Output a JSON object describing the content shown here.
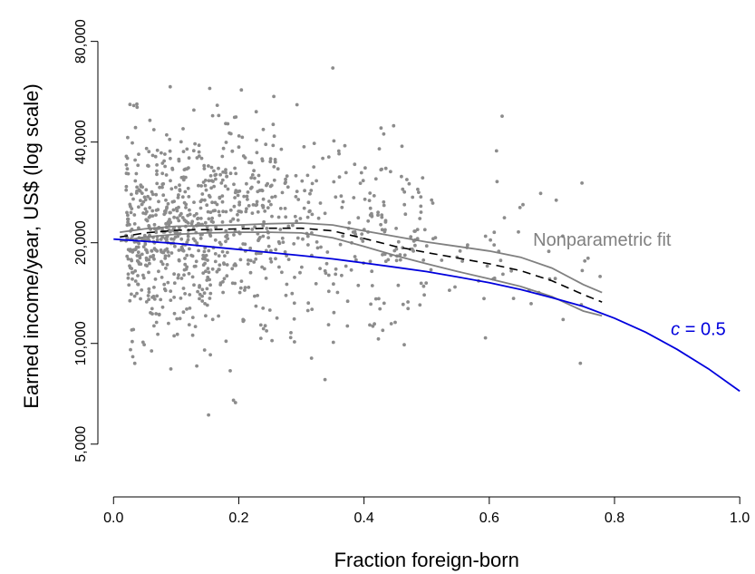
{
  "chart_data": {
    "type": "scatter",
    "title": "",
    "xlabel": "Fraction foreign-born",
    "ylabel": "Earned income/year, US$ (log scale)",
    "xlim": [
      -0.025,
      1.02
    ],
    "ylim": [
      3700,
      91000
    ],
    "y_scale": "log",
    "grid": false,
    "x_ticks": [
      0.0,
      0.2,
      0.4,
      0.6,
      0.8,
      1.0
    ],
    "x_tick_labels": [
      "0.0",
      "0.2",
      "0.4",
      "0.6",
      "0.8",
      "1.0"
    ],
    "y_ticks": [
      5000,
      10000,
      20000,
      40000,
      80000
    ],
    "y_tick_labels": [
      "5,000",
      "10,000",
      "20,000",
      "40,000",
      "80,000"
    ],
    "colors": {
      "points": "#8c8c8c",
      "nonparametric": "#808080",
      "model": "#0000dd",
      "mean": "#000000"
    },
    "series": [
      {
        "kind": "band-upper",
        "x": [
          0.01,
          0.05,
          0.1,
          0.15,
          0.2,
          0.25,
          0.3,
          0.35,
          0.4,
          0.45,
          0.5,
          0.55,
          0.6,
          0.65,
          0.7,
          0.75,
          0.78
        ],
        "values": [
          21500,
          22000,
          22400,
          22500,
          22600,
          22800,
          22900,
          22600,
          21700,
          20900,
          20100,
          19500,
          18900,
          18100,
          16800,
          15000,
          14200
        ]
      },
      {
        "kind": "band-lower",
        "x": [
          0.01,
          0.05,
          0.1,
          0.15,
          0.2,
          0.25,
          0.3,
          0.35,
          0.4,
          0.45,
          0.5,
          0.55,
          0.6,
          0.65,
          0.7,
          0.75,
          0.78
        ],
        "values": [
          20200,
          20800,
          21200,
          21400,
          21500,
          21500,
          21400,
          20700,
          19500,
          18300,
          17300,
          16400,
          15600,
          14800,
          13800,
          12500,
          12100
        ]
      },
      {
        "kind": "mean",
        "x": [
          0.01,
          0.05,
          0.1,
          0.15,
          0.2,
          0.25,
          0.3,
          0.35,
          0.4,
          0.45,
          0.5,
          0.55,
          0.6,
          0.65,
          0.7,
          0.75,
          0.78
        ],
        "values": [
          20800,
          21400,
          21800,
          21900,
          22000,
          22100,
          22100,
          21700,
          20600,
          19500,
          18700,
          18000,
          17300,
          16500,
          15400,
          14000,
          13300
        ]
      },
      {
        "kind": "model",
        "x": [
          0.0,
          0.05,
          0.1,
          0.15,
          0.2,
          0.25,
          0.3,
          0.35,
          0.4,
          0.45,
          0.5,
          0.55,
          0.6,
          0.65,
          0.7,
          0.75,
          0.8,
          0.85,
          0.9,
          0.95,
          1.0
        ],
        "values": [
          20500,
          20200,
          19900,
          19500,
          19100,
          18700,
          18300,
          17900,
          17400,
          16900,
          16400,
          15800,
          15200,
          14500,
          13700,
          12900,
          11900,
          10800,
          9600,
          8400,
          7200
        ]
      }
    ],
    "scatter_seed": 7,
    "scatter_count": 1050,
    "annotations": [
      {
        "name": "nonparametric-label",
        "text": "Nonparametric fit",
        "x": 0.67,
        "y": 19600,
        "color": "#808080"
      },
      {
        "name": "model-label",
        "prefix": "c",
        "text": " = 0.5",
        "x": 0.89,
        "y": 10600,
        "color": "#0000dd"
      }
    ]
  }
}
